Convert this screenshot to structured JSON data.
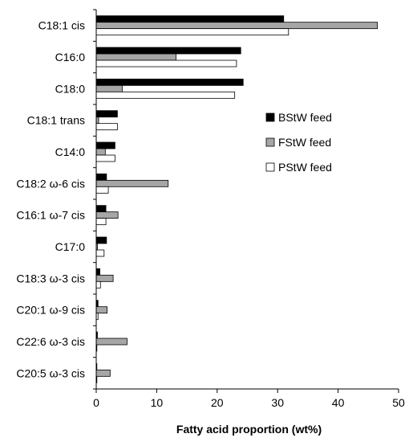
{
  "chart_data": {
    "type": "bar",
    "orientation": "horizontal",
    "categories": [
      "C18:1 cis",
      "C16:0",
      "C18:0",
      "C18:1 trans",
      "C14:0",
      "C18:2 ω-6 cis",
      "C16:1 ω-7 cis",
      "C17:0",
      "C18:3 ω-3 cis",
      "C20:1 ω-9 cis",
      "C22:6 ω-3 cis",
      "C20:5 ω-3 cis"
    ],
    "series": [
      {
        "name": "BStW feed",
        "color": "#000000",
        "values": [
          31.0,
          23.9,
          24.3,
          3.5,
          3.1,
          1.7,
          1.6,
          1.7,
          0.6,
          0.3,
          0.2,
          0.1
        ]
      },
      {
        "name": "FStW feed",
        "color": "#a6a6a6",
        "values": [
          46.5,
          13.2,
          4.3,
          0.4,
          1.5,
          11.9,
          3.6,
          0.2,
          2.8,
          1.8,
          5.1,
          2.3
        ]
      },
      {
        "name": "PStW feed",
        "color": "#ffffff",
        "values": [
          31.8,
          23.2,
          22.9,
          3.5,
          3.1,
          2.0,
          1.6,
          1.3,
          0.7,
          0.3,
          0.1,
          0.1
        ]
      }
    ],
    "xlabel": "Fatty acid proportion (wt%)",
    "ylabel": "",
    "xlim": [
      0,
      50
    ],
    "xticks": [
      "0",
      "10",
      "20",
      "30",
      "40",
      "50"
    ],
    "grid": false,
    "legend_position": "right"
  }
}
